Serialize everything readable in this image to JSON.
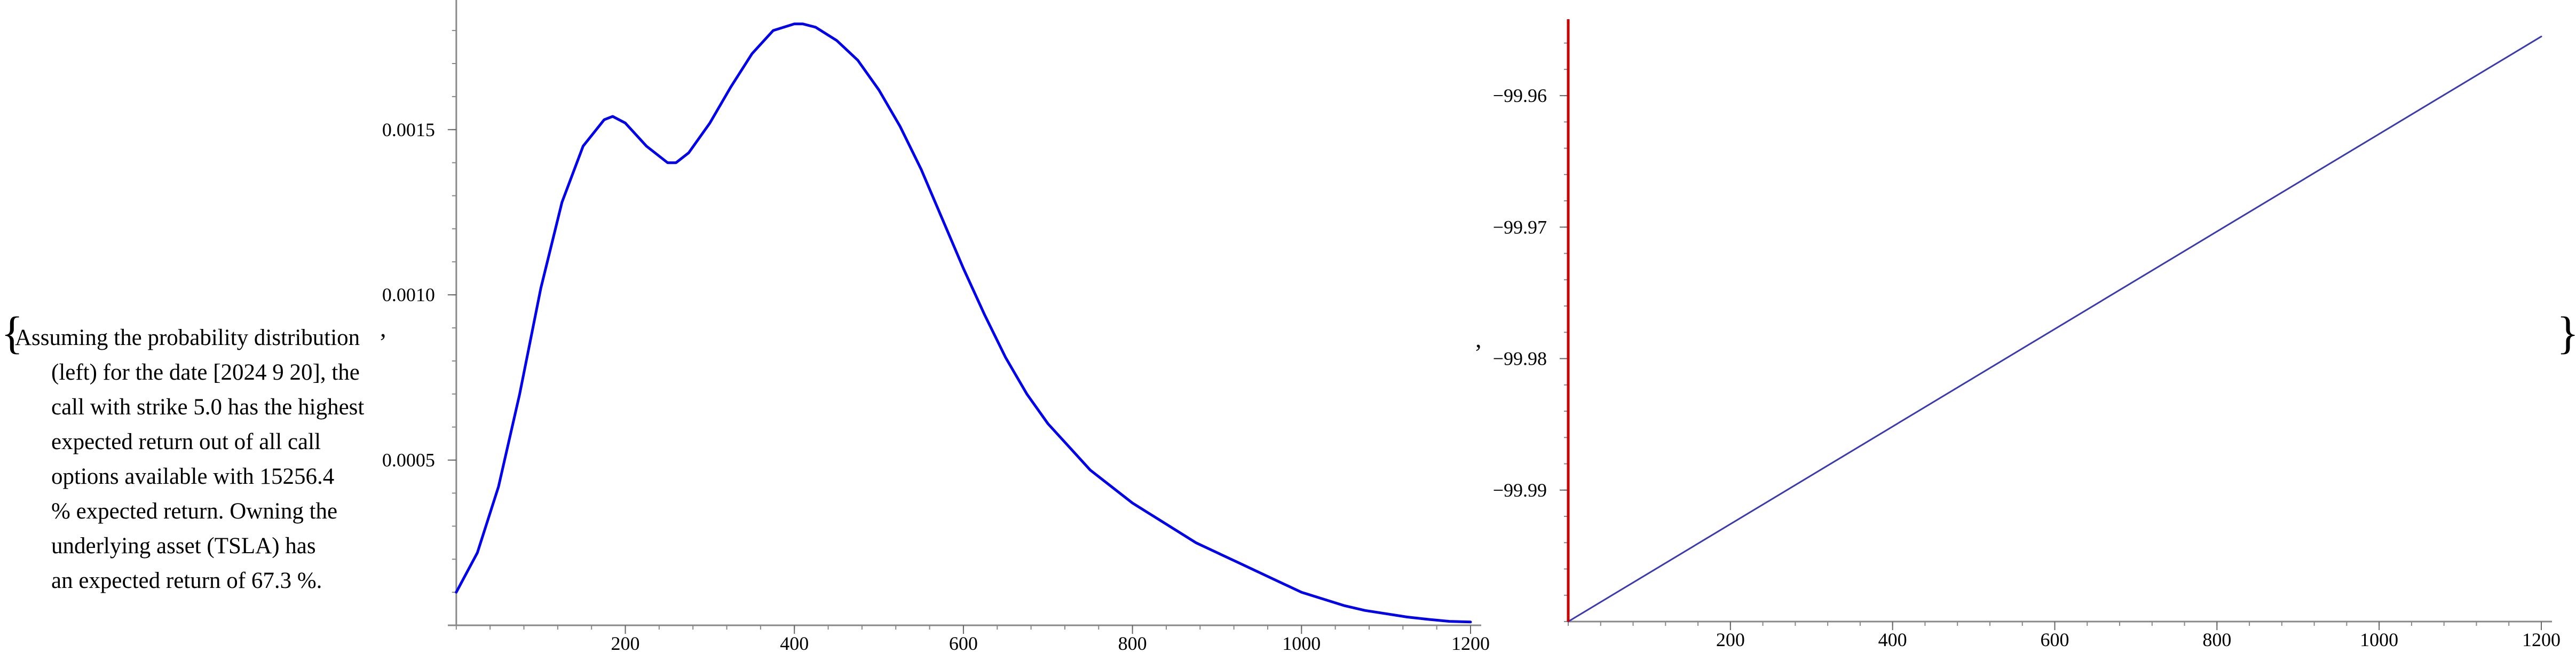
{
  "caption": {
    "lines": [
      "Assuming the probability distribution",
      "(left) for the date [2024 9 20], the",
      "call with strike 5.0 has the highest",
      "expected return out of all call",
      "options available with 15256.4",
      "% expected return. Owning the",
      "underlying asset (TSLA) has",
      "an expected return of 67.3 %."
    ]
  },
  "punctuation": {
    "open_brace": "{",
    "close_brace": "}",
    "separator": ","
  },
  "chart_data": [
    {
      "type": "line",
      "title": "",
      "xlabel": "",
      "ylabel": "",
      "xlim": [
        -10,
        1200
      ],
      "ylim": [
        0,
        0.00186
      ],
      "xticks": [
        200,
        400,
        600,
        800,
        1000,
        1200
      ],
      "yticks": [
        0.0005,
        0.001,
        0.0015
      ],
      "ytick_labels": [
        "0.0005",
        "0.0010",
        "0.0015"
      ],
      "line_color": "#0000ee",
      "series": [
        {
          "x": [
            0,
            25,
            50,
            75,
            100,
            125,
            150,
            175,
            185,
            200,
            225,
            250,
            260,
            275,
            300,
            325,
            350,
            375,
            400,
            410,
            425,
            450,
            475,
            500,
            525,
            550,
            575,
            600,
            625,
            650,
            675,
            700,
            725,
            750,
            775,
            800,
            825,
            850,
            875,
            900,
            925,
            950,
            975,
            1000,
            1025,
            1050,
            1075,
            1100,
            1125,
            1150,
            1175,
            1200
          ],
          "y": [
            0.0001,
            0.00022,
            0.00042,
            0.0007,
            0.00102,
            0.00128,
            0.00145,
            0.00153,
            0.00154,
            0.00152,
            0.00145,
            0.0014,
            0.0014,
            0.00143,
            0.00152,
            0.00163,
            0.00173,
            0.0018,
            0.00182,
            0.00182,
            0.00181,
            0.00177,
            0.00171,
            0.00162,
            0.00151,
            0.00138,
            0.00123,
            0.00108,
            0.00094,
            0.00081,
            0.0007,
            0.00061,
            0.00054,
            0.00047,
            0.00042,
            0.00037,
            0.00033,
            0.00029,
            0.00025,
            0.00022,
            0.00019,
            0.00016,
            0.00013,
            0.0001,
            8e-05,
            6e-05,
            4.5e-05,
            3.5e-05,
            2.5e-05,
            1.8e-05,
            1.2e-05,
            1e-05
          ]
        }
      ]
    },
    {
      "type": "line",
      "title": "",
      "xlabel": "",
      "ylabel": "",
      "xlim": [
        0,
        1200
      ],
      "ylim": [
        -100.0,
        -99.955
      ],
      "xticks": [
        200,
        400,
        600,
        800,
        1000,
        1200
      ],
      "yticks": [
        -99.99,
        -99.98,
        -99.97,
        -99.96
      ],
      "ytick_labels": [
        "−99.99",
        "−99.98",
        "−99.97",
        "−99.96"
      ],
      "line_color": "#3a3ab0",
      "marker_line_color": "#cc0000",
      "marker_line_x": 0,
      "series": [
        {
          "x": [
            0,
            1200
          ],
          "y": [
            -100.0,
            -99.9555
          ]
        }
      ]
    }
  ]
}
